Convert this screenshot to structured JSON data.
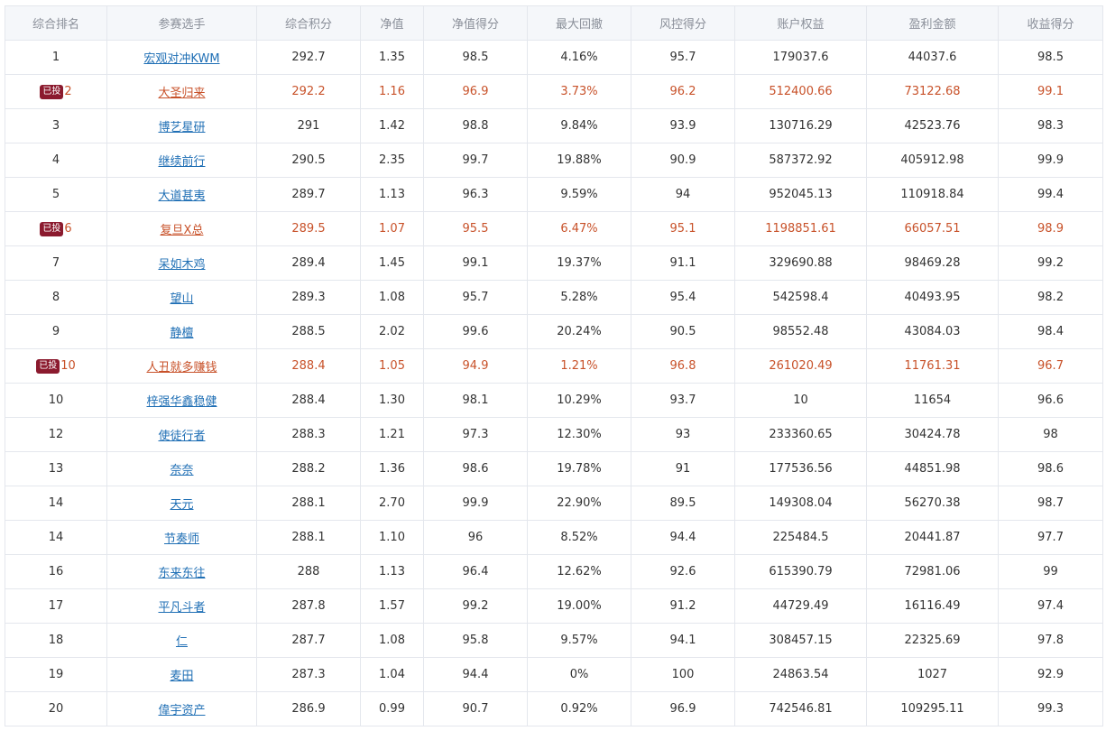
{
  "headers": [
    "综合排名",
    "参赛选手",
    "综合积分",
    "净值",
    "净值得分",
    "最大回撤",
    "风控得分",
    "账户权益",
    "盈利金额",
    "收益得分"
  ],
  "invested_badge": "已投",
  "rows": [
    {
      "rank": "1",
      "invested": false,
      "name": "宏观对冲KWM",
      "score": "292.7",
      "nav": "1.35",
      "nav_score": "98.5",
      "drawdown": "4.16%",
      "risk_score": "95.7",
      "equity": "179037.6",
      "profit": "44037.6",
      "return_score": "98.5"
    },
    {
      "rank": "2",
      "invested": true,
      "name": "大圣归来",
      "score": "292.2",
      "nav": "1.16",
      "nav_score": "96.9",
      "drawdown": "3.73%",
      "risk_score": "96.2",
      "equity": "512400.66",
      "profit": "73122.68",
      "return_score": "99.1"
    },
    {
      "rank": "3",
      "invested": false,
      "name": "博艺星研",
      "score": "291",
      "nav": "1.42",
      "nav_score": "98.8",
      "drawdown": "9.84%",
      "risk_score": "93.9",
      "equity": "130716.29",
      "profit": "42523.76",
      "return_score": "98.3"
    },
    {
      "rank": "4",
      "invested": false,
      "name": "继续前行",
      "score": "290.5",
      "nav": "2.35",
      "nav_score": "99.7",
      "drawdown": "19.88%",
      "risk_score": "90.9",
      "equity": "587372.92",
      "profit": "405912.98",
      "return_score": "99.9"
    },
    {
      "rank": "5",
      "invested": false,
      "name": "大道甚夷",
      "score": "289.7",
      "nav": "1.13",
      "nav_score": "96.3",
      "drawdown": "9.59%",
      "risk_score": "94",
      "equity": "952045.13",
      "profit": "110918.84",
      "return_score": "99.4"
    },
    {
      "rank": "6",
      "invested": true,
      "name": "复旦X总",
      "score": "289.5",
      "nav": "1.07",
      "nav_score": "95.5",
      "drawdown": "6.47%",
      "risk_score": "95.1",
      "equity": "1198851.61",
      "profit": "66057.51",
      "return_score": "98.9"
    },
    {
      "rank": "7",
      "invested": false,
      "name": "呆如木鸡",
      "score": "289.4",
      "nav": "1.45",
      "nav_score": "99.1",
      "drawdown": "19.37%",
      "risk_score": "91.1",
      "equity": "329690.88",
      "profit": "98469.28",
      "return_score": "99.2"
    },
    {
      "rank": "8",
      "invested": false,
      "name": "望山",
      "score": "289.3",
      "nav": "1.08",
      "nav_score": "95.7",
      "drawdown": "5.28%",
      "risk_score": "95.4",
      "equity": "542598.4",
      "profit": "40493.95",
      "return_score": "98.2"
    },
    {
      "rank": "9",
      "invested": false,
      "name": "静檀",
      "score": "288.5",
      "nav": "2.02",
      "nav_score": "99.6",
      "drawdown": "20.24%",
      "risk_score": "90.5",
      "equity": "98552.48",
      "profit": "43084.03",
      "return_score": "98.4"
    },
    {
      "rank": "10",
      "invested": true,
      "name": "人丑就多赚钱",
      "score": "288.4",
      "nav": "1.05",
      "nav_score": "94.9",
      "drawdown": "1.21%",
      "risk_score": "96.8",
      "equity": "261020.49",
      "profit": "11761.31",
      "return_score": "96.7"
    },
    {
      "rank": "10",
      "invested": false,
      "name": "梓强华鑫稳健",
      "score": "288.4",
      "nav": "1.30",
      "nav_score": "98.1",
      "drawdown": "10.29%",
      "risk_score": "93.7",
      "equity": "10",
      "profit": "11654",
      "return_score": "96.6"
    },
    {
      "rank": "12",
      "invested": false,
      "name": "使徒行者",
      "score": "288.3",
      "nav": "1.21",
      "nav_score": "97.3",
      "drawdown": "12.30%",
      "risk_score": "93",
      "equity": "233360.65",
      "profit": "30424.78",
      "return_score": "98"
    },
    {
      "rank": "13",
      "invested": false,
      "name": "奈奈",
      "score": "288.2",
      "nav": "1.36",
      "nav_score": "98.6",
      "drawdown": "19.78%",
      "risk_score": "91",
      "equity": "177536.56",
      "profit": "44851.98",
      "return_score": "98.6"
    },
    {
      "rank": "14",
      "invested": false,
      "name": "天元",
      "score": "288.1",
      "nav": "2.70",
      "nav_score": "99.9",
      "drawdown": "22.90%",
      "risk_score": "89.5",
      "equity": "149308.04",
      "profit": "56270.38",
      "return_score": "98.7"
    },
    {
      "rank": "14",
      "invested": false,
      "name": "节奏师",
      "score": "288.1",
      "nav": "1.10",
      "nav_score": "96",
      "drawdown": "8.52%",
      "risk_score": "94.4",
      "equity": "225484.5",
      "profit": "20441.87",
      "return_score": "97.7"
    },
    {
      "rank": "16",
      "invested": false,
      "name": "东来东往",
      "score": "288",
      "nav": "1.13",
      "nav_score": "96.4",
      "drawdown": "12.62%",
      "risk_score": "92.6",
      "equity": "615390.79",
      "profit": "72981.06",
      "return_score": "99"
    },
    {
      "rank": "17",
      "invested": false,
      "name": "平凡斗者",
      "score": "287.8",
      "nav": "1.57",
      "nav_score": "99.2",
      "drawdown": "19.00%",
      "risk_score": "91.2",
      "equity": "44729.49",
      "profit": "16116.49",
      "return_score": "97.4"
    },
    {
      "rank": "18",
      "invested": false,
      "name": "仁",
      "score": "287.7",
      "nav": "1.08",
      "nav_score": "95.8",
      "drawdown": "9.57%",
      "risk_score": "94.1",
      "equity": "308457.15",
      "profit": "22325.69",
      "return_score": "97.8"
    },
    {
      "rank": "19",
      "invested": false,
      "name": "麦田",
      "score": "287.3",
      "nav": "1.04",
      "nav_score": "94.4",
      "drawdown": "0%",
      "risk_score": "100",
      "equity": "24863.54",
      "profit": "1027",
      "return_score": "92.9"
    },
    {
      "rank": "20",
      "invested": false,
      "name": "偉宇资产",
      "score": "286.9",
      "nav": "0.99",
      "nav_score": "90.7",
      "drawdown": "0.92%",
      "risk_score": "96.9",
      "equity": "742546.81",
      "profit": "109295.11",
      "return_score": "99.3"
    }
  ],
  "colors": {
    "highlight_text": "#c8522a",
    "link": "#1f6fb5",
    "badge_bg": "#8b1a2e",
    "header_bg": "#f5f7fa",
    "border": "#e4e7ed"
  }
}
